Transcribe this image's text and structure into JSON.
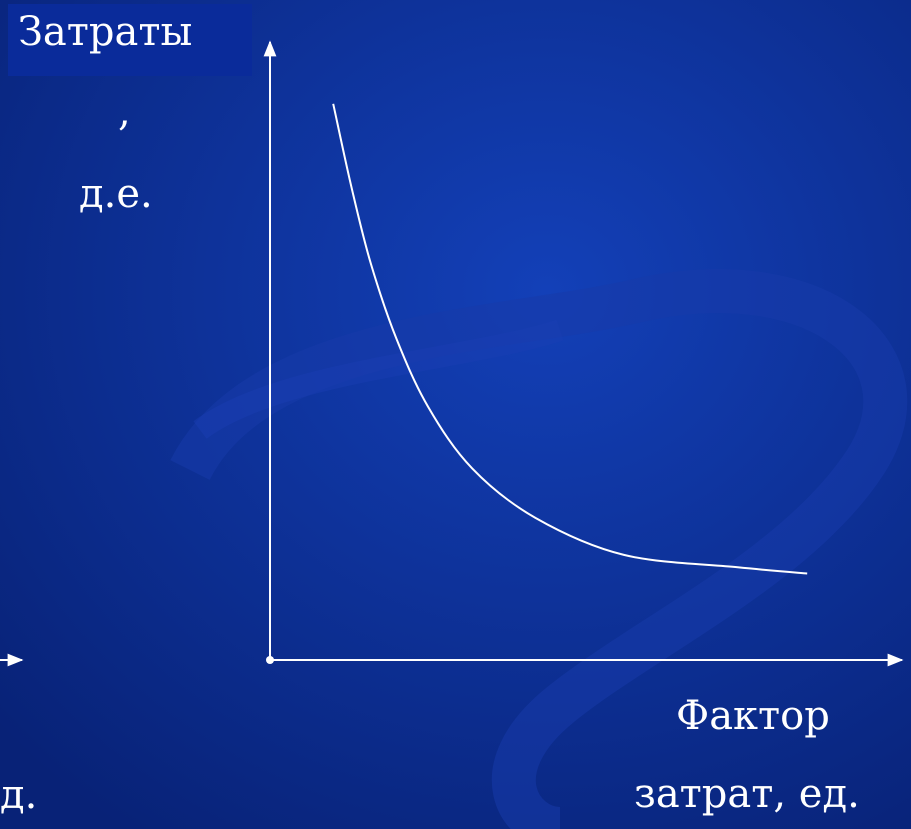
{
  "chart_data": {
    "type": "line",
    "title": "",
    "ylabel_lines": [
      "Затраты",
      ",",
      "д.е."
    ],
    "xlabel_lines": [
      "Фактор",
      "затрат, ед."
    ],
    "left_fragment": "д.",
    "grid": false,
    "legend": "none",
    "series": [
      {
        "style": "curve",
        "x": [
          0.1,
          0.13,
          0.16,
          0.2,
          0.25,
          0.32,
          0.42,
          0.56,
          0.74,
          0.85
        ],
        "y": [
          0.9,
          0.76,
          0.64,
          0.52,
          0.41,
          0.31,
          0.23,
          0.17,
          0.15,
          0.14
        ]
      }
    ],
    "xlim": [
      0,
      1
    ],
    "ylim": [
      0,
      1
    ]
  },
  "colors": {
    "background": "#0b2a8f",
    "axes": "#ffffff",
    "curve": "#ffffff",
    "text": "#ffffff"
  }
}
